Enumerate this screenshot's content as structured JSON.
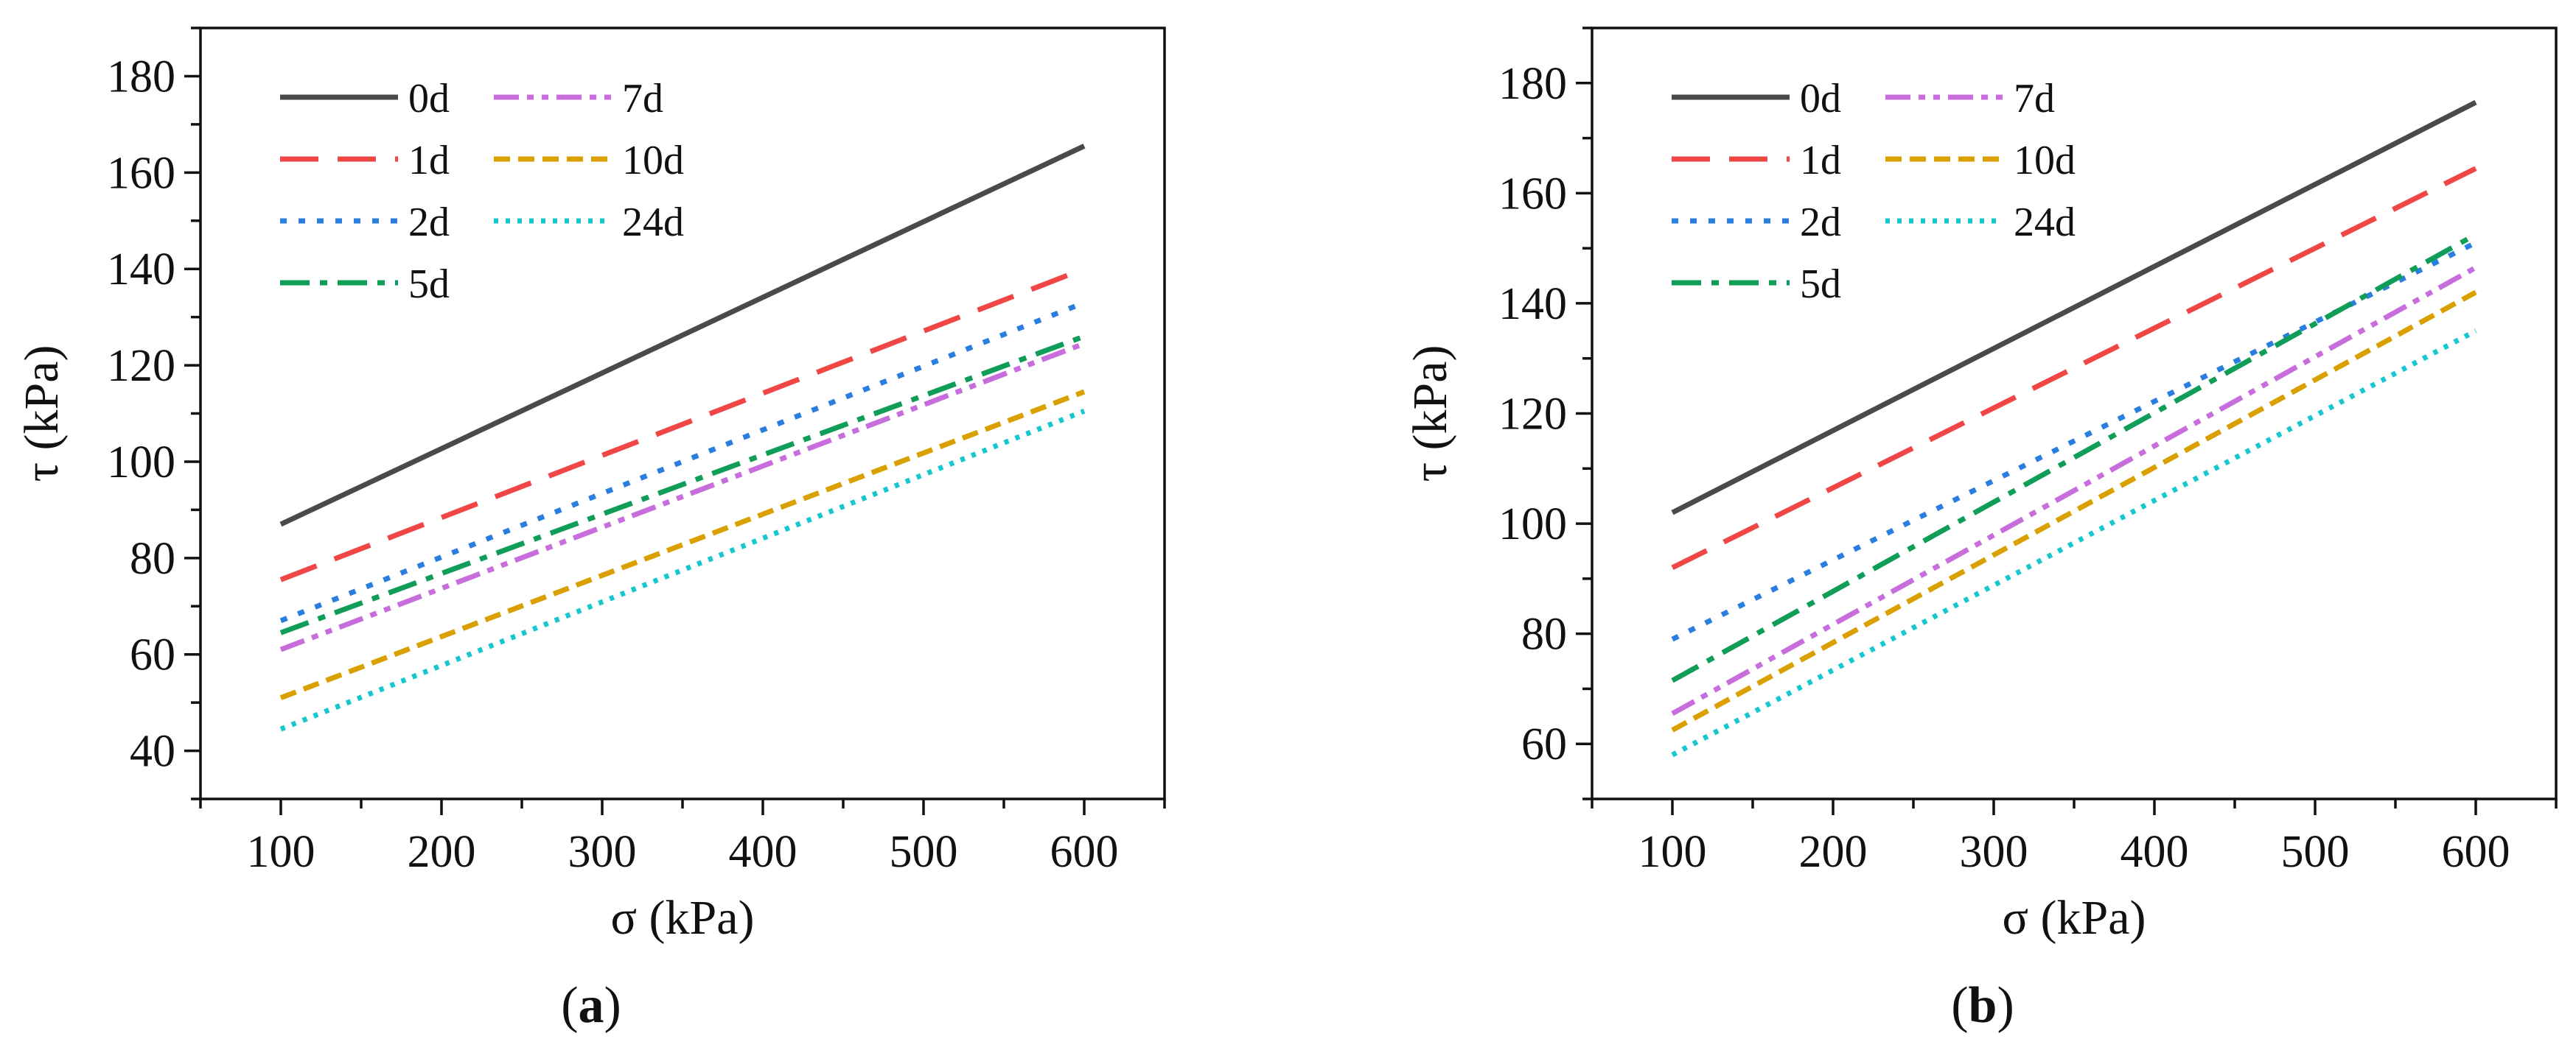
{
  "chart_data": [
    {
      "type": "line",
      "panel_label": "a",
      "caption_open": "(",
      "caption_close": ")",
      "xlabel": "σ (kPa)",
      "ylabel": "τ (kPa)",
      "xlim": [
        50,
        650
      ],
      "ylim": [
        30,
        190
      ],
      "xticks": [
        100,
        200,
        300,
        400,
        500,
        600
      ],
      "yticks": [
        40,
        60,
        80,
        100,
        120,
        140,
        160,
        180
      ],
      "legend_position": "top-left",
      "series": [
        {
          "name": "0d",
          "color": "#4a4a4a",
          "style": "solid",
          "x": [
            100,
            600
          ],
          "y": [
            87,
            165.5
          ]
        },
        {
          "name": "1d",
          "color": "#f04646",
          "style": "long-dash",
          "x": [
            100,
            600
          ],
          "y": [
            75.5,
            140
          ]
        },
        {
          "name": "2d",
          "color": "#2a7ee0",
          "style": "dot",
          "x": [
            100,
            600
          ],
          "y": [
            67,
            133
          ]
        },
        {
          "name": "5d",
          "color": "#0f9d58",
          "style": "dash-dot",
          "x": [
            100,
            600
          ],
          "y": [
            64.5,
            126
          ]
        },
        {
          "name": "7d",
          "color": "#c86edc",
          "style": "dash-dot-dot",
          "x": [
            100,
            600
          ],
          "y": [
            61,
            124.5
          ]
        },
        {
          "name": "10d",
          "color": "#d9a000",
          "style": "short-dash",
          "x": [
            100,
            600
          ],
          "y": [
            51,
            114.5
          ]
        },
        {
          "name": "24d",
          "color": "#16c7cf",
          "style": "short-dot",
          "x": [
            100,
            600
          ],
          "y": [
            44.5,
            110.5
          ]
        }
      ]
    },
    {
      "type": "line",
      "panel_label": "b",
      "caption_open": "(",
      "caption_close": ")",
      "xlabel": "σ (kPa)",
      "ylabel": "τ (kPa)",
      "xlim": [
        50,
        650
      ],
      "ylim": [
        50,
        190
      ],
      "xticks": [
        100,
        200,
        300,
        400,
        500,
        600
      ],
      "yticks": [
        60,
        80,
        100,
        120,
        140,
        160,
        180
      ],
      "legend_position": "top-left",
      "series": [
        {
          "name": "0d",
          "color": "#4a4a4a",
          "style": "solid",
          "x": [
            100,
            600
          ],
          "y": [
            102,
            176.5
          ]
        },
        {
          "name": "1d",
          "color": "#f04646",
          "style": "long-dash",
          "x": [
            100,
            600
          ],
          "y": [
            92,
            164.5
          ]
        },
        {
          "name": "2d",
          "color": "#2a7ee0",
          "style": "dot",
          "x": [
            100,
            600
          ],
          "y": [
            79,
            151
          ]
        },
        {
          "name": "5d",
          "color": "#0f9d58",
          "style": "dash-dot",
          "x": [
            100,
            600
          ],
          "y": [
            71.5,
            152.5
          ]
        },
        {
          "name": "7d",
          "color": "#c86edc",
          "style": "dash-dot-dot",
          "x": [
            100,
            600
          ],
          "y": [
            65.5,
            146.5
          ]
        },
        {
          "name": "10d",
          "color": "#d9a000",
          "style": "short-dash",
          "x": [
            100,
            600
          ],
          "y": [
            62.5,
            142
          ]
        },
        {
          "name": "24d",
          "color": "#16c7cf",
          "style": "short-dot",
          "x": [
            100,
            600
          ],
          "y": [
            58,
            135
          ]
        }
      ]
    }
  ]
}
